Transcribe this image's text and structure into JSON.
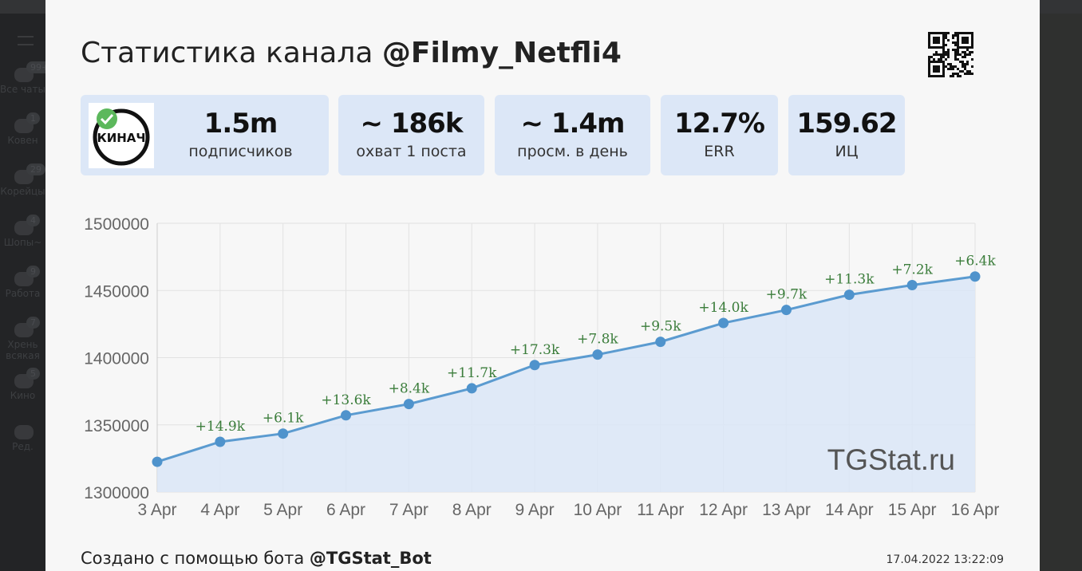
{
  "sidebar": {
    "items": [
      {
        "label": "Все чаты",
        "badge": "99+",
        "icon": "chats-icon"
      },
      {
        "label": "Ковен",
        "badge": "1",
        "icon": "crown-icon"
      },
      {
        "label": "Корейцы",
        "badge": "29",
        "icon": "cat-icon"
      },
      {
        "label": "Шопы~",
        "badge": "4",
        "icon": "folder-icon"
      },
      {
        "label": "Работа",
        "badge": "9",
        "icon": "chart-icon"
      },
      {
        "label": "Хрень всякая",
        "badge": "7",
        "icon": "gamepad-icon"
      },
      {
        "label": "Кино",
        "badge": "5",
        "icon": "folder-icon"
      },
      {
        "label": "Ред.",
        "badge": "",
        "icon": "edit-folders-icon"
      }
    ]
  },
  "card": {
    "title_prefix": "Статистика канала ",
    "channel": "@Filmy_Netfli4",
    "avatar_text": "КИНАЧ",
    "stats": [
      {
        "value": "1.5m",
        "label": "подписчиков"
      },
      {
        "value": "~ 186k",
        "label": "охват 1 поста"
      },
      {
        "value": "~ 1.4m",
        "label": "просм. в день"
      },
      {
        "value": "12.7%",
        "label": "ERR"
      },
      {
        "value": "159.62",
        "label": "ИЦ"
      }
    ],
    "watermark": "TGStat.ru",
    "footer_prefix": "Создано с помощью бота ",
    "footer_bot": "@TGStat_Bot",
    "timestamp": "17.04.2022 13:22:09"
  },
  "colors": {
    "line": "#5b9bd0",
    "fill": "#dbe7f6",
    "label": "#3b7d3b",
    "stat_bg": "#dce7f7"
  },
  "chart_data": {
    "type": "area",
    "categories": [
      "3 Apr",
      "4 Apr",
      "5 Apr",
      "6 Apr",
      "7 Apr",
      "8 Apr",
      "9 Apr",
      "10 Apr",
      "11 Apr",
      "12 Apr",
      "13 Apr",
      "14 Apr",
      "15 Apr",
      "16 Apr"
    ],
    "values": [
      1322500,
      1337400,
      1343500,
      1357100,
      1365500,
      1377200,
      1394500,
      1402300,
      1411800,
      1425800,
      1435500,
      1446800,
      1454000,
      1460400
    ],
    "data_labels": [
      "",
      "+14.9k",
      "+6.1k",
      "+13.6k",
      "+8.4k",
      "+11.7k",
      "+17.3k",
      "+7.8k",
      "+9.5k",
      "+14.0k",
      "+9.7k",
      "+11.3k",
      "+7.2k",
      "+6.4k"
    ],
    "yticks": [
      "1300000",
      "1350000",
      "1400000",
      "1450000",
      "1500000"
    ],
    "ylim": [
      1300000,
      1500000
    ],
    "grid": true
  }
}
